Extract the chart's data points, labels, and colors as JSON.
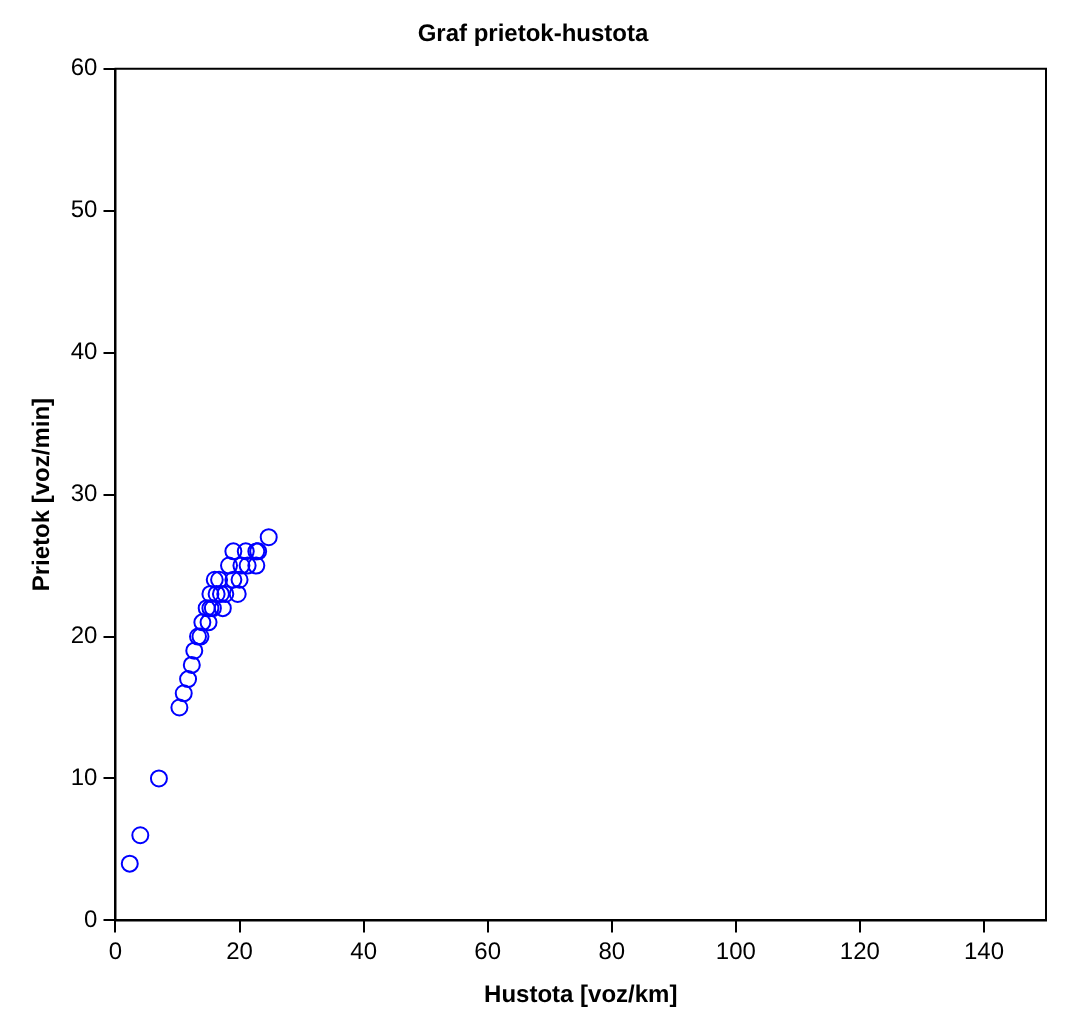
{
  "chart_data": {
    "type": "scatter",
    "title": "Graf prietok-hustota",
    "xlabel": "Hustota [voz/km]",
    "ylabel": "Prietok [voz/min]",
    "series": [
      {
        "color": "#0000ff",
        "x": [
          2.3,
          4,
          7,
          10.3,
          11,
          11.7,
          12.3,
          12.7,
          13.3,
          14,
          14.7,
          15.3,
          16,
          16.7,
          17.3,
          17.7,
          18.3,
          19,
          19.7,
          20,
          20.3,
          21,
          22.7,
          23,
          24.7,
          13.7,
          15,
          15.7,
          16.3,
          15.3,
          17,
          19,
          21.3,
          22.7
        ],
        "values": [
          4,
          6,
          10,
          15,
          16,
          17,
          18,
          19,
          20,
          21,
          22,
          23,
          24,
          24,
          22,
          23,
          25,
          26,
          23,
          24,
          25,
          26,
          25,
          26,
          27,
          20,
          21,
          22,
          23,
          22,
          23,
          24,
          25,
          26
        ]
      }
    ],
    "xlim": [
      0,
      150
    ],
    "xticks": [
      0,
      20,
      40,
      60,
      80,
      100,
      120,
      140
    ],
    "ylim": [
      0,
      60
    ],
    "yticks": [
      0,
      10,
      20,
      30,
      40,
      50,
      60
    ],
    "grid": false,
    "legend": false,
    "marker": "circle"
  }
}
